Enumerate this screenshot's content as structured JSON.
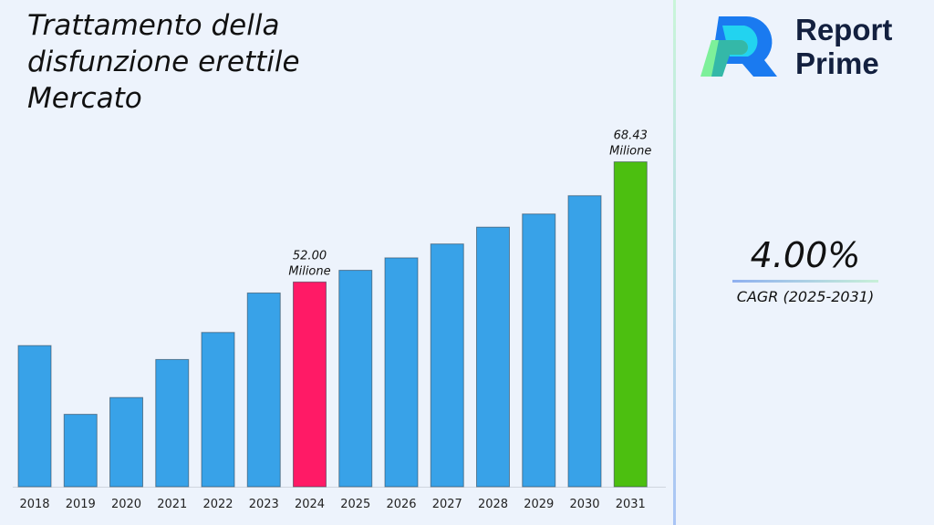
{
  "header": {
    "title": "Trattamento della disfunzione erettile Mercato"
  },
  "brand": {
    "line1": "Report",
    "line2": "Prime"
  },
  "cagr": {
    "value": "4.00%",
    "label": "CAGR (2025-2031)"
  },
  "chart_data": {
    "type": "bar",
    "title": "Trattamento della disfunzione erettile Mercato",
    "categories": [
      "2018",
      "2019",
      "2020",
      "2021",
      "2022",
      "2023",
      "2024",
      "2025",
      "2026",
      "2027",
      "2028",
      "2029",
      "2030",
      "2031"
    ],
    "values": [
      43.3,
      33.9,
      36.2,
      41.4,
      45.1,
      50.5,
      52.0,
      53.6,
      55.3,
      57.2,
      59.5,
      61.3,
      63.8,
      68.43
    ],
    "unit": "Milione",
    "ylim": [
      24,
      70
    ],
    "grid": false,
    "colors": {
      "default": "#38a2e8",
      "highlight_2024": "#ff1a66",
      "highlight_2031": "#4cbf10"
    },
    "data_labels": [
      {
        "category": "2024",
        "value": "52.00",
        "unit": "Milione"
      },
      {
        "category": "2031",
        "value": "68.43",
        "unit": "Milione"
      }
    ]
  }
}
